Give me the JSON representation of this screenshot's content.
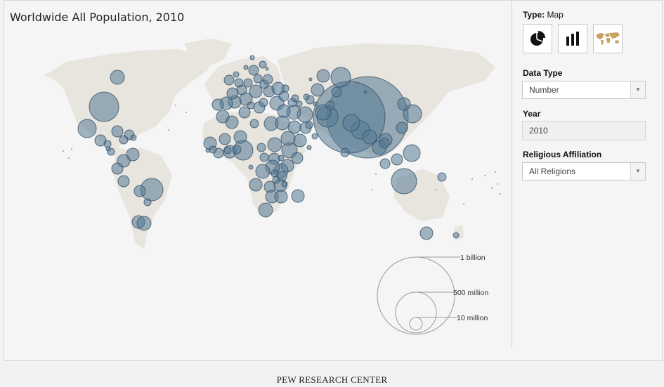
{
  "chart_data": {
    "type": "bubble-map",
    "title": "Worldwide All Population, 2010",
    "measure": "Number",
    "year": "2010",
    "affiliation": "All Religions",
    "legend": [
      {
        "label": "1 billion",
        "value": 1000000000
      },
      {
        "label": "500 million",
        "value": 500000000
      },
      {
        "label": "10 million",
        "value": 10000000
      }
    ],
    "bubble_color": "#5b7f98",
    "land_color": "#e8e4de"
  },
  "panel": {
    "type_label": "Type:",
    "type_value": "Map",
    "data_type_label": "Data Type",
    "data_type_value": "Number",
    "year_label": "Year",
    "year_value": "2010",
    "affiliation_label": "Religious Affiliation",
    "affiliation_value": "All Religions",
    "type_buttons": [
      "pie-chart-icon",
      "bar-chart-icon",
      "world-map-icon"
    ]
  },
  "footer": {
    "credit": "PEW RESEARCH CENTER"
  }
}
